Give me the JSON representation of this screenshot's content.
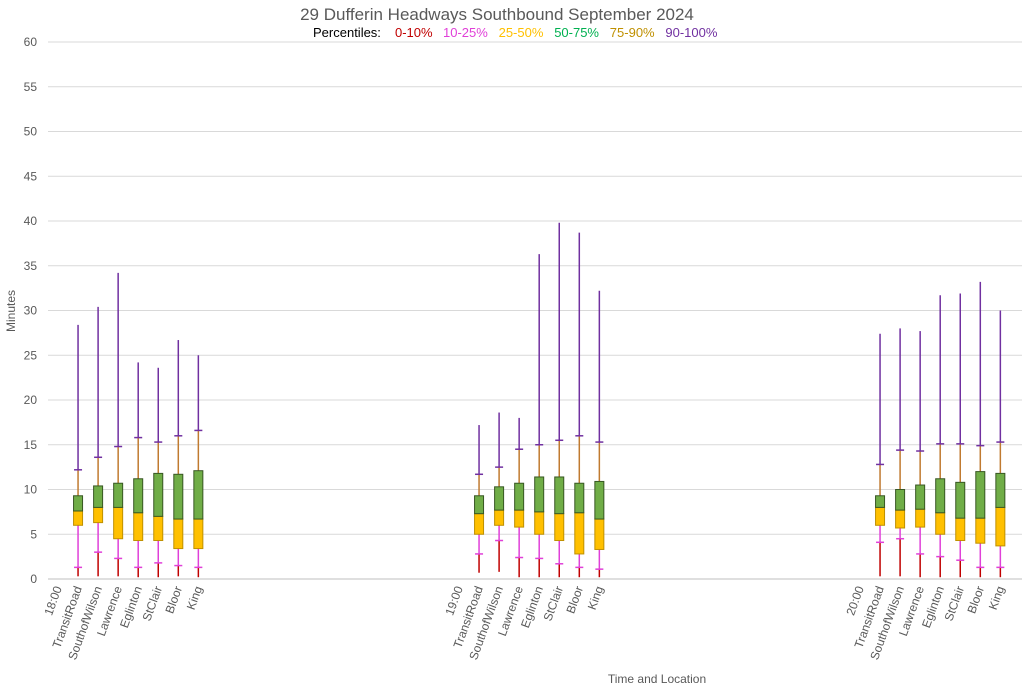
{
  "chart_data": {
    "type": "box",
    "title": "29 Dufferin Headways Southbound September 2024",
    "legend_label": "Percentiles:",
    "legend": [
      {
        "label": "0-10%",
        "color": "#C00000"
      },
      {
        "label": "10-25%",
        "color": "#E040D8"
      },
      {
        "label": "25-50%",
        "color": "#FFC000"
      },
      {
        "label": "50-75%",
        "color": "#00B050"
      },
      {
        "label": "75-90%",
        "color": "#BF9000"
      },
      {
        "label": "90-100%",
        "color": "#7030A0"
      }
    ],
    "legend_placement": "top-center",
    "xlabel": "Time and Location",
    "ylabel": "Minutes",
    "ylim": [
      0,
      60
    ],
    "yticks": [
      0,
      5,
      10,
      15,
      20,
      25,
      30,
      35,
      40,
      45,
      50,
      55,
      60
    ],
    "grid": true,
    "stat_order": [
      "min",
      "p10",
      "p25",
      "median",
      "p75",
      "p90",
      "max"
    ],
    "groups": [
      {
        "time": "18:00",
        "stations": [
          {
            "name": "TransitRoad",
            "stats": [
              0.3,
              1.3,
              6.0,
              7.6,
              9.3,
              12.2,
              28.4
            ]
          },
          {
            "name": "SouthofWilson",
            "stats": [
              0.3,
              3.0,
              6.3,
              8.0,
              10.4,
              13.6,
              30.4
            ]
          },
          {
            "name": "Lawrence",
            "stats": [
              0.3,
              2.3,
              4.5,
              8.0,
              10.7,
              14.8,
              34.2
            ]
          },
          {
            "name": "Eglinton",
            "stats": [
              0.2,
              1.3,
              4.3,
              7.4,
              11.2,
              15.8,
              24.2
            ]
          },
          {
            "name": "StClair",
            "stats": [
              0.2,
              1.8,
              4.3,
              7.0,
              11.8,
              15.3,
              23.6
            ]
          },
          {
            "name": "Bloor",
            "stats": [
              0.3,
              1.5,
              3.4,
              6.7,
              11.7,
              16.0,
              26.7
            ]
          },
          {
            "name": "King",
            "stats": [
              0.2,
              1.3,
              3.4,
              6.7,
              12.1,
              16.6,
              25.0
            ]
          }
        ]
      },
      {
        "time": "19:00",
        "stations": [
          {
            "name": "TransitRoad",
            "stats": [
              0.7,
              2.8,
              5.0,
              7.3,
              9.3,
              11.7,
              17.2
            ]
          },
          {
            "name": "SouthofWilson",
            "stats": [
              0.8,
              4.3,
              6.0,
              7.7,
              10.3,
              12.5,
              18.6
            ]
          },
          {
            "name": "Lawrence",
            "stats": [
              0.2,
              2.4,
              5.8,
              7.7,
              10.7,
              14.5,
              18.0
            ]
          },
          {
            "name": "Eglinton",
            "stats": [
              0.2,
              2.3,
              5.0,
              7.5,
              11.4,
              15.0,
              36.3
            ]
          },
          {
            "name": "StClair",
            "stats": [
              0.2,
              1.7,
              4.3,
              7.3,
              11.4,
              15.5,
              39.8
            ]
          },
          {
            "name": "Bloor",
            "stats": [
              0.2,
              1.3,
              2.8,
              7.4,
              10.7,
              16.0,
              38.7
            ]
          },
          {
            "name": "King",
            "stats": [
              0.2,
              1.1,
              3.3,
              6.7,
              10.9,
              15.3,
              32.2
            ]
          }
        ]
      },
      {
        "time": "20:00",
        "stations": [
          {
            "name": "TransitRoad",
            "stats": [
              0.3,
              4.1,
              6.0,
              8.0,
              9.3,
              12.8,
              27.4
            ]
          },
          {
            "name": "SouthofWilson",
            "stats": [
              0.3,
              4.5,
              5.7,
              7.7,
              10.0,
              14.4,
              28.0
            ]
          },
          {
            "name": "Lawrence",
            "stats": [
              0.2,
              2.8,
              5.8,
              7.8,
              10.5,
              14.3,
              27.7
            ]
          },
          {
            "name": "Eglinton",
            "stats": [
              0.2,
              2.5,
              5.0,
              7.4,
              11.2,
              15.1,
              31.7
            ]
          },
          {
            "name": "StClair",
            "stats": [
              0.2,
              2.1,
              4.3,
              6.8,
              10.8,
              15.1,
              31.9
            ]
          },
          {
            "name": "Bloor",
            "stats": [
              0.2,
              1.3,
              4.0,
              6.8,
              12.0,
              14.9,
              33.2
            ]
          },
          {
            "name": "King",
            "stats": [
              0.2,
              1.3,
              3.7,
              8.0,
              11.8,
              15.3,
              30.0
            ]
          }
        ]
      }
    ]
  }
}
